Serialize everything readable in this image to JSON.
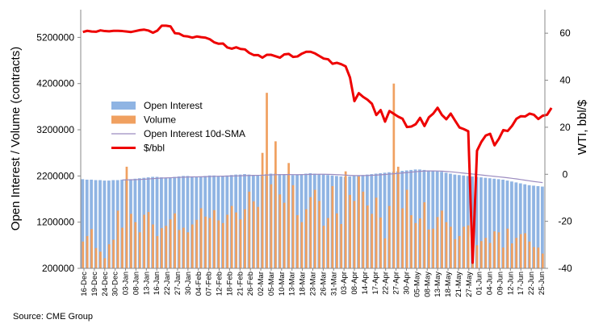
{
  "source": "Source: CME Group",
  "chart_data": {
    "type": "bar",
    "title": "",
    "ylabel": "Open Interest / Volume (contracts)",
    "y2label": "WTI, bbl/$",
    "ylim": [
      200000,
      5800000
    ],
    "yticks": [
      200000,
      1200000,
      2200000,
      3200000,
      4200000,
      5200000
    ],
    "y2lim": [
      -40,
      70
    ],
    "y2ticks": [
      -40,
      -20,
      0,
      20,
      40,
      60
    ],
    "grid": false,
    "legend_position": "center-left",
    "x_tick_labels": [
      "16-Dec",
      "19-Dec",
      "24-Dec",
      "30-Dec",
      "03-Jan",
      "08-Jan",
      "13-Jan",
      "16-Jan",
      "22-Jan",
      "27-Jan",
      "30-Jan",
      "04-Feb",
      "07-Feb",
      "12-Feb",
      "18-Feb",
      "21-Feb",
      "26-Feb",
      "02-Mar",
      "05-Mar",
      "10-Mar",
      "13-Mar",
      "18-Mar",
      "23-Mar",
      "26-Mar",
      "31-Mar",
      "03-Apr",
      "08-Apr",
      "14-Apr",
      "17-Apr",
      "22-Apr",
      "27-Apr",
      "30-Apr",
      "05-May",
      "08-May",
      "13-May",
      "18-May",
      "21-May",
      "27-May",
      "01-Jun",
      "04-Jun",
      "09-Jun",
      "12-Jun",
      "17-Jun",
      "22-Jun",
      "25-Jun"
    ],
    "series": [
      {
        "name": "Open Interest",
        "type": "bar",
        "color": "#8fb4e3",
        "values": [
          2130000,
          2120000,
          2120000,
          2110000,
          2110000,
          2100000,
          2100000,
          2110000,
          2110000,
          2120000,
          2130000,
          2130000,
          2140000,
          2150000,
          2160000,
          2170000,
          2180000,
          2180000,
          2170000,
          2160000,
          2170000,
          2180000,
          2190000,
          2200000,
          2200000,
          2190000,
          2180000,
          2190000,
          2200000,
          2210000,
          2210000,
          2200000,
          2200000,
          2210000,
          2220000,
          2230000,
          2230000,
          2240000,
          2230000,
          2220000,
          2220000,
          2230000,
          2240000,
          2250000,
          2250000,
          2240000,
          2230000,
          2220000,
          2220000,
          2230000,
          2240000,
          2250000,
          2260000,
          2250000,
          2240000,
          2230000,
          2220000,
          2210000,
          2200000,
          2190000,
          2180000,
          2190000,
          2200000,
          2210000,
          2220000,
          2230000,
          2240000,
          2250000,
          2260000,
          2270000,
          2280000,
          2290000,
          2300000,
          2310000,
          2320000,
          2330000,
          2340000,
          2340000,
          2330000,
          2320000,
          2310000,
          2300000,
          2290000,
          2270000,
          2250000,
          2230000,
          2220000,
          2210000,
          2200000,
          2190000,
          2180000,
          2170000,
          2160000,
          2150000,
          2140000,
          2130000,
          2120000,
          2100000,
          2080000,
          2060000,
          2040000,
          2020000,
          2000000,
          1990000,
          1980000,
          1970000
        ]
      },
      {
        "name": "Volume",
        "type": "bar",
        "color": "#f0a060",
        "values": [
          780000,
          900000,
          1050000,
          640000,
          560000,
          420000,
          720000,
          820000,
          1450000,
          1080000,
          2400000,
          1380000,
          1200000,
          980000,
          1360000,
          1420000,
          1150000,
          900000,
          1070000,
          1120000,
          1260000,
          1390000,
          1030000,
          1080000,
          980000,
          1150000,
          1250000,
          1500000,
          1320000,
          1290000,
          1460000,
          1240000,
          1180000,
          1360000,
          1550000,
          1410000,
          1260000,
          1480000,
          1860000,
          1650000,
          1530000,
          2700000,
          4000000,
          2020000,
          2950000,
          1800000,
          1620000,
          2480000,
          2000000,
          1350000,
          1200000,
          1480000,
          1740000,
          1900000,
          1660000,
          1120000,
          1290000,
          1980000,
          1390000,
          1160000,
          2300000,
          1790000,
          1660000,
          2190000,
          1860000,
          1560000,
          1380000,
          1730000,
          1300000,
          850000,
          1550000,
          4200000,
          2400000,
          1500000,
          1900000,
          1350000,
          1180000,
          1280000,
          1630000,
          1040000,
          1060000,
          1310000,
          1450000,
          1200000,
          1100000,
          830000,
          900000,
          1100000,
          1130000,
          740000,
          700000,
          790000,
          860000,
          750000,
          1000000,
          980000,
          650000,
          1060000,
          740000,
          860000,
          940000,
          960000,
          780000,
          660000,
          650000,
          520000
        ]
      },
      {
        "name": "Open Interest 10d-SMA",
        "type": "line",
        "color": "#9c8cc0",
        "values": [
          null,
          null,
          null,
          null,
          null,
          null,
          null,
          null,
          null,
          2115000,
          2116000,
          2117000,
          2120000,
          2124000,
          2129000,
          2135000,
          2142000,
          2149000,
          2155000,
          2158000,
          2162000,
          2166000,
          2170000,
          2174000,
          2177000,
          2180000,
          2181000,
          2182000,
          2185000,
          2189000,
          2192000,
          2194000,
          2196000,
          2198000,
          2199000,
          2201000,
          2204000,
          2208000,
          2211000,
          2213000,
          2214000,
          2216000,
          2220000,
          2224000,
          2227000,
          2229000,
          2230000,
          2230000,
          2229000,
          2228000,
          2229000,
          2231000,
          2234000,
          2236000,
          2237000,
          2237000,
          2235000,
          2232000,
          2228000,
          2224000,
          2218000,
          2213000,
          2209000,
          2208000,
          2208000,
          2210000,
          2214000,
          2219000,
          2226000,
          2233000,
          2240000,
          2248000,
          2256000,
          2265000,
          2274000,
          2283000,
          2292000,
          2300000,
          2306000,
          2309000,
          2310000,
          2308000,
          2304000,
          2298000,
          2290000,
          2281000,
          2271000,
          2261000,
          2251000,
          2241000,
          2231000,
          2221000,
          2211000,
          2201000,
          2191000,
          2181000,
          2171000,
          2160000,
          2148000,
          2136000,
          2122000,
          2108000,
          2094000,
          2080000,
          2068000,
          2056000
        ]
      },
      {
        "name": "$/bbl",
        "type": "line",
        "color": "#ee0000",
        "values": [
          60.5,
          61,
          60.7,
          60.6,
          61.2,
          60.9,
          60.8,
          61,
          61,
          60.9,
          60.7,
          60.5,
          60.9,
          61.3,
          61.5,
          61.1,
          60.2,
          61.1,
          63.2,
          63.2,
          62.9,
          60,
          59.8,
          58.8,
          58.6,
          58.1,
          58.6,
          58.3,
          58.1,
          57.4,
          56.1,
          55.5,
          55.6,
          53.9,
          53.4,
          54,
          53.3,
          53.1,
          51.6,
          50.7,
          50.7,
          49.6,
          50.8,
          50.8,
          50.2,
          49.6,
          51,
          51.2,
          49.9,
          50.1,
          51.3,
          52.1,
          52.1,
          51.4,
          50.3,
          49.2,
          48.9,
          47,
          47.4,
          46.8,
          45.9,
          41.1,
          31.1,
          34.5,
          32.9,
          31.7,
          30,
          25.2,
          27.3,
          22.4,
          26.9,
          25.7,
          24.5,
          23.6,
          20.1,
          20.3,
          21.3,
          24,
          20.5,
          24.2,
          25.8,
          28.3,
          25.2,
          23.4,
          25.8,
          22.8,
          19.9,
          19.2,
          18.3,
          -37.6,
          10,
          13.8,
          16.5,
          17.2,
          12.3,
          15.1,
          18.8,
          18.4,
          20.6,
          23.6,
          24.7,
          24.6,
          25.8,
          25.3,
          23.5,
          24.9,
          25.3,
          28.2
        ]
      }
    ]
  }
}
